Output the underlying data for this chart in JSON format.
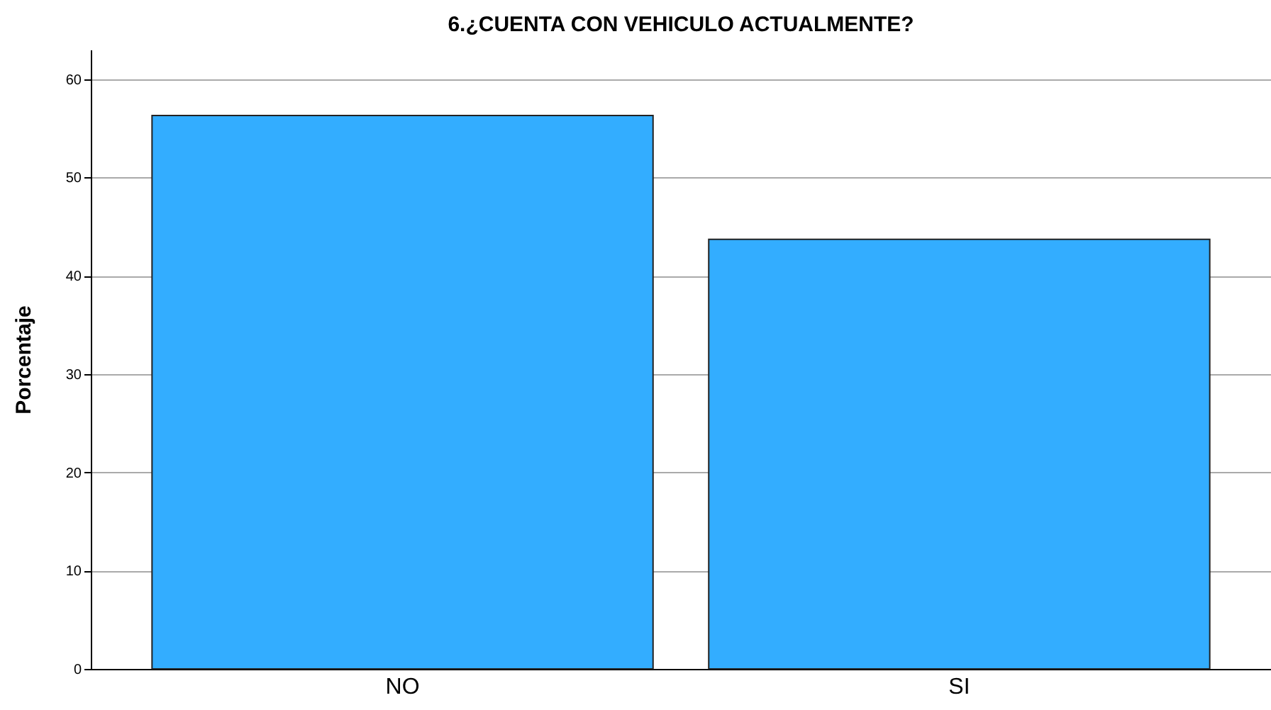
{
  "chart_data": {
    "type": "bar",
    "title": "6.¿CUENTA CON VEHICULO ACTUALMENTE?",
    "ylabel": "Porcentaje",
    "categories": [
      "NO",
      "SI"
    ],
    "values": [
      56.3,
      43.7
    ],
    "color": "#33adff",
    "ylim": [
      0,
      63
    ],
    "yticks": [
      0,
      10,
      20,
      30,
      40,
      50,
      60
    ],
    "grid": "y"
  }
}
